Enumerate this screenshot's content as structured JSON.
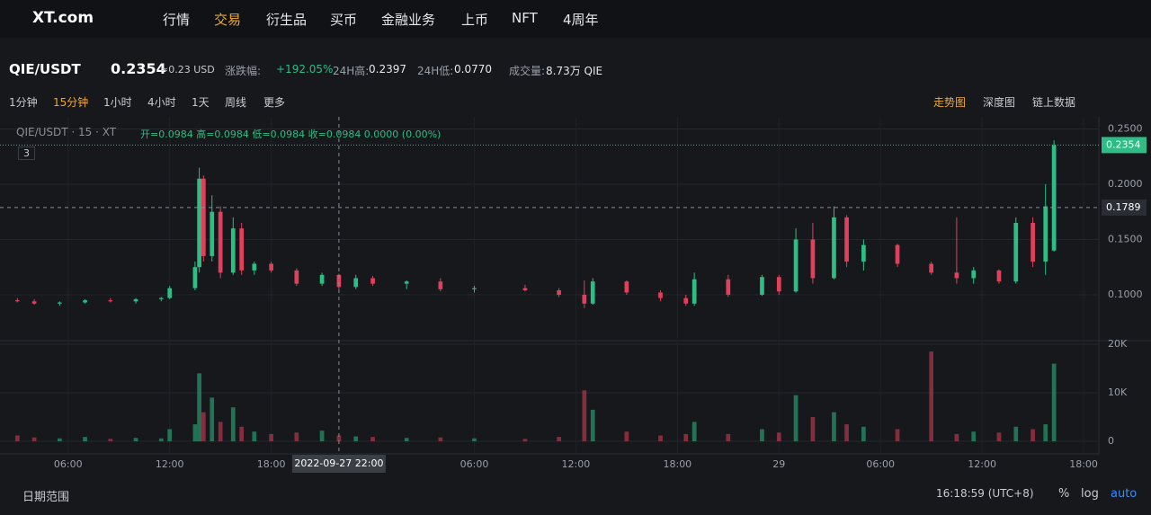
{
  "nav": {
    "logo": "XT.com",
    "items": [
      "行情",
      "交易",
      "衍生品",
      "买币",
      "金融业务",
      "上币",
      "NFT",
      "4周年"
    ],
    "active": 1
  },
  "ticker": {
    "pair": "QIE/USDT",
    "price": "0.2354",
    "usd": "≈0.23 USD",
    "change_label": "涨跌幅:",
    "change": "+192.05%",
    "high_label": "24H高:",
    "high": "0.2397",
    "low_label": "24H低:",
    "low": "0.0770",
    "volume_label": "成交量:",
    "volume": "8.73万 QIE"
  },
  "toolbar": {
    "intervals": [
      "1分钟",
      "15分钟",
      "1小时",
      "4小时",
      "1天",
      "周线",
      "更多"
    ],
    "active": 1,
    "views": [
      "走势图",
      "深度图",
      "链上数据"
    ],
    "active_view": 0
  },
  "chart": {
    "legend_title": "QIE/USDT · 15 · XT",
    "legend_values": "开=0.0984 高=0.0984 低=0.0984 收=0.0984 0.0000 (0.00%)",
    "indicator_count": "3",
    "up_color": "#2ebd85",
    "down_color": "#e0405b",
    "xlim": [
      2.4,
      66.9
    ],
    "xticks": [
      {
        "value": 6,
        "label": "06:00"
      },
      {
        "value": 12,
        "label": "12:00"
      },
      {
        "value": 18,
        "label": "18:00"
      },
      {
        "value": 30,
        "label": "06:00"
      },
      {
        "value": 36,
        "label": "12:00"
      },
      {
        "value": 42,
        "label": "18:00"
      },
      {
        "value": 48,
        "label": "29"
      },
      {
        "value": 54,
        "label": "06:00"
      },
      {
        "value": 60,
        "label": "12:00"
      },
      {
        "value": 66,
        "label": "18:00"
      }
    ],
    "ylim": [
      0.0593,
      0.2528
    ],
    "yticks": [
      {
        "value": 0.25,
        "label": "0.2500"
      },
      {
        "value": 0.2,
        "label": "0.2000"
      },
      {
        "value": 0.15,
        "label": "0.1500"
      },
      {
        "value": 0.1,
        "label": "0.1000"
      }
    ],
    "last_price": {
      "value": 0.2354,
      "label": "0.2354"
    },
    "cross_price": {
      "value": 0.1789,
      "label": "0.1789"
    },
    "cross_time": {
      "value": 22,
      "label": "2022-09-27   22:00"
    },
    "candles": [
      [
        3,
        0.095,
        0.097,
        0.093,
        0.094
      ],
      [
        4,
        0.094,
        0.096,
        0.091,
        0.092
      ],
      [
        5.5,
        0.092,
        0.094,
        0.09,
        0.093
      ],
      [
        7,
        0.093,
        0.096,
        0.092,
        0.095
      ],
      [
        8.5,
        0.095,
        0.097,
        0.093,
        0.094
      ],
      [
        10,
        0.094,
        0.097,
        0.092,
        0.096
      ],
      [
        11.5,
        0.096,
        0.098,
        0.094,
        0.097
      ],
      [
        12,
        0.097,
        0.108,
        0.096,
        0.106
      ],
      [
        13.5,
        0.106,
        0.13,
        0.104,
        0.125
      ],
      [
        13.75,
        0.125,
        0.215,
        0.12,
        0.205
      ],
      [
        14,
        0.205,
        0.208,
        0.13,
        0.135
      ],
      [
        14.5,
        0.135,
        0.19,
        0.13,
        0.175
      ],
      [
        15,
        0.175,
        0.18,
        0.115,
        0.12
      ],
      [
        15.75,
        0.12,
        0.17,
        0.118,
        0.16
      ],
      [
        16.25,
        0.16,
        0.165,
        0.118,
        0.122
      ],
      [
        17,
        0.122,
        0.13,
        0.118,
        0.128
      ],
      [
        18,
        0.128,
        0.13,
        0.12,
        0.122
      ],
      [
        19.5,
        0.122,
        0.124,
        0.108,
        0.11
      ],
      [
        21,
        0.11,
        0.12,
        0.108,
        0.118
      ],
      [
        22,
        0.118,
        0.119,
        0.105,
        0.107
      ],
      [
        23,
        0.107,
        0.118,
        0.105,
        0.115
      ],
      [
        24,
        0.115,
        0.117,
        0.108,
        0.11
      ],
      [
        26,
        0.11,
        0.113,
        0.105,
        0.112
      ],
      [
        28,
        0.112,
        0.115,
        0.103,
        0.105
      ],
      [
        30,
        0.105,
        0.108,
        0.102,
        0.106
      ],
      [
        33,
        0.106,
        0.109,
        0.103,
        0.104
      ],
      [
        35,
        0.104,
        0.106,
        0.098,
        0.1
      ],
      [
        36.5,
        0.1,
        0.113,
        0.088,
        0.092
      ],
      [
        37,
        0.092,
        0.115,
        0.091,
        0.112
      ],
      [
        39,
        0.112,
        0.113,
        0.1,
        0.102
      ],
      [
        41,
        0.102,
        0.104,
        0.094,
        0.097
      ],
      [
        42.5,
        0.097,
        0.1,
        0.09,
        0.092
      ],
      [
        43,
        0.092,
        0.12,
        0.09,
        0.114
      ],
      [
        45,
        0.114,
        0.118,
        0.098,
        0.1
      ],
      [
        47,
        0.1,
        0.118,
        0.099,
        0.116
      ],
      [
        48,
        0.116,
        0.118,
        0.1,
        0.103
      ],
      [
        49,
        0.103,
        0.16,
        0.102,
        0.15
      ],
      [
        50,
        0.15,
        0.165,
        0.11,
        0.115
      ],
      [
        51.25,
        0.115,
        0.18,
        0.114,
        0.17
      ],
      [
        52,
        0.17,
        0.172,
        0.125,
        0.13
      ],
      [
        53,
        0.13,
        0.15,
        0.122,
        0.145
      ],
      [
        55,
        0.145,
        0.146,
        0.125,
        0.128
      ],
      [
        57,
        0.128,
        0.13,
        0.118,
        0.12
      ],
      [
        58.5,
        0.12,
        0.17,
        0.11,
        0.115
      ],
      [
        59.5,
        0.115,
        0.125,
        0.11,
        0.122
      ],
      [
        61,
        0.122,
        0.123,
        0.11,
        0.112
      ],
      [
        62,
        0.112,
        0.17,
        0.11,
        0.165
      ],
      [
        63,
        0.165,
        0.17,
        0.125,
        0.13
      ],
      [
        63.75,
        0.13,
        0.2,
        0.118,
        0.18
      ],
      [
        64.25,
        0.14,
        0.2397,
        0.139,
        0.2354
      ]
    ],
    "vlim": [
      0,
      20000
    ],
    "vticks": [
      {
        "value": 20000,
        "label": "20K"
      },
      {
        "value": 10000,
        "label": "10K"
      },
      0
    ],
    "volumes": [
      1200,
      800,
      600,
      900,
      500,
      700,
      600,
      2500,
      3500,
      14000,
      6000,
      9000,
      4000,
      7000,
      3000,
      2000,
      1500,
      1800,
      2200,
      1200,
      1000,
      900,
      700,
      800,
      600,
      500,
      900,
      10500,
      6500,
      2000,
      1200,
      1500,
      4000,
      1500,
      2500,
      1800,
      9500,
      5000,
      6000,
      3500,
      3000,
      2500,
      18500,
      1500,
      2000,
      1800,
      3000,
      2500,
      3500,
      16000
    ]
  },
  "footer": {
    "date_range": "日期范围",
    "clock": "16:18:59 (UTC+8)",
    "percent": "%",
    "log": "log",
    "auto": "auto"
  }
}
